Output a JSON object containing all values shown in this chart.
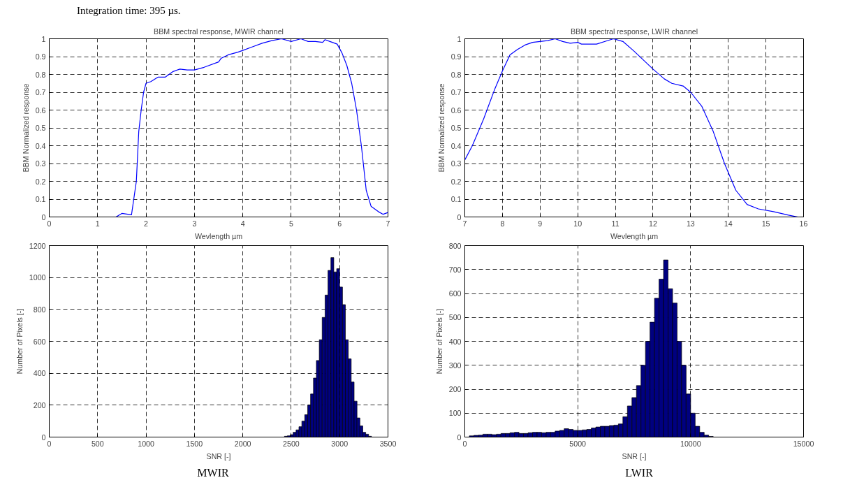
{
  "chart_data": [
    {
      "type": "line",
      "title": "BBM spectral response, MWIR channel",
      "xlabel": "Wevlength µm",
      "ylabel": "BBM Normalized response",
      "annotations": [
        "Integration time: 395 µs."
      ],
      "grid": true,
      "xlim": [
        0,
        7
      ],
      "ylim": [
        0,
        1
      ],
      "xticks": [
        0,
        1,
        2,
        3,
        4,
        5,
        6,
        7
      ],
      "yticks": [
        0,
        0.1,
        0.2,
        0.3,
        0.4,
        0.5,
        0.6,
        0.7,
        0.8,
        0.9,
        1
      ],
      "x": [
        1.0,
        1.38,
        1.5,
        1.7,
        1.8,
        1.85,
        1.9,
        1.95,
        2.0,
        2.1,
        2.25,
        2.4,
        2.55,
        2.7,
        2.85,
        3.0,
        3.2,
        3.5,
        3.55,
        3.7,
        3.9,
        4.0,
        4.2,
        4.4,
        4.6,
        4.8,
        5.0,
        5.2,
        5.35,
        5.5,
        5.65,
        5.7,
        5.8,
        5.95,
        6.05,
        6.15,
        6.25,
        6.35,
        6.45,
        6.55,
        6.65,
        6.8,
        6.9,
        7.0
      ],
      "series": [
        {
          "color": "#0000ff",
          "values": [
            0,
            0,
            0.02,
            0.012,
            0.2,
            0.48,
            0.6,
            0.7,
            0.75,
            0.76,
            0.785,
            0.785,
            0.815,
            0.83,
            0.825,
            0.825,
            0.84,
            0.87,
            0.89,
            0.91,
            0.925,
            0.935,
            0.955,
            0.975,
            0.99,
            1.0,
            0.985,
            1.0,
            0.985,
            0.985,
            0.98,
            0.995,
            0.985,
            0.97,
            0.92,
            0.85,
            0.75,
            0.6,
            0.4,
            0.15,
            0.06,
            0.03,
            0.015,
            0.025
          ]
        }
      ]
    },
    {
      "type": "line",
      "title": "BBM spectral response, LWIR channel",
      "xlabel": "Wevlength µm",
      "ylabel": "BBM Normalized response",
      "grid": true,
      "xlim": [
        7,
        16
      ],
      "ylim": [
        0,
        1
      ],
      "xticks": [
        7,
        8,
        9,
        10,
        11,
        12,
        13,
        14,
        15,
        16
      ],
      "yticks": [
        0,
        0.1,
        0.2,
        0.3,
        0.4,
        0.5,
        0.6,
        0.7,
        0.8,
        0.9,
        1
      ],
      "x": [
        7,
        7.2,
        7.5,
        7.8,
        8.0,
        8.2,
        8.4,
        8.6,
        8.8,
        9.0,
        9.2,
        9.4,
        9.6,
        9.8,
        10.0,
        10.1,
        10.5,
        10.8,
        10.95,
        11.2,
        11.5,
        12.0,
        12.3,
        12.5,
        12.8,
        13.0,
        13.3,
        13.6,
        13.9,
        14.2,
        14.5,
        14.8,
        15.2,
        15.6,
        15.85,
        16
      ],
      "series": [
        {
          "color": "#0000ff",
          "values": [
            0.32,
            0.4,
            0.55,
            0.72,
            0.82,
            0.91,
            0.94,
            0.965,
            0.98,
            0.985,
            0.99,
            1.0,
            0.985,
            0.975,
            0.98,
            0.97,
            0.97,
            0.99,
            1.0,
            0.985,
            0.93,
            0.83,
            0.775,
            0.75,
            0.735,
            0.7,
            0.62,
            0.48,
            0.3,
            0.15,
            0.07,
            0.045,
            0.03,
            0.01,
            0,
            0
          ]
        }
      ]
    },
    {
      "type": "histogram",
      "xlabel": "SNR [-]",
      "ylabel": "Number of Pixels [-]",
      "annotations": [
        "MWIR"
      ],
      "grid": true,
      "color": "#000080",
      "xlim": [
        0,
        3500
      ],
      "ylim": [
        0,
        1200
      ],
      "xticks": [
        0,
        500,
        1000,
        1500,
        2000,
        2500,
        3000,
        3500
      ],
      "yticks": [
        0,
        200,
        400,
        600,
        800,
        1000,
        1200
      ],
      "bins": [
        2400,
        2430,
        2460,
        2490,
        2520,
        2550,
        2580,
        2610,
        2640,
        2670,
        2700,
        2730,
        2760,
        2790,
        2820,
        2850,
        2880,
        2910,
        2940,
        2970,
        3000,
        3030,
        3060,
        3090,
        3120,
        3150,
        3180,
        3210,
        3240,
        3270,
        3300,
        3330
      ],
      "values": [
        null,
        5,
        8,
        15,
        30,
        45,
        65,
        100,
        140,
        200,
        270,
        370,
        480,
        610,
        750,
        890,
        1045,
        1125,
        1035,
        1055,
        940,
        830,
        610,
        490,
        345,
        225,
        120,
        70,
        30,
        18,
        5
      ]
    },
    {
      "type": "histogram",
      "xlabel": "SNR [-]",
      "ylabel": "Number of Pixels [-]",
      "annotations": [
        "LWIR"
      ],
      "grid": true,
      "color": "#000080",
      "xlim": [
        0,
        15000
      ],
      "ylim": [
        0,
        800
      ],
      "xticks": [
        0,
        5000,
        10000,
        15000
      ],
      "yticks": [
        0,
        100,
        200,
        300,
        400,
        500,
        600,
        700,
        800
      ],
      "bins": [
        200,
        400,
        600,
        800,
        1000,
        1200,
        1400,
        1600,
        1800,
        2000,
        2200,
        2400,
        2600,
        2800,
        3000,
        3200,
        3400,
        3600,
        3800,
        4000,
        4200,
        4400,
        4600,
        4800,
        5000,
        5200,
        5400,
        5600,
        5800,
        6000,
        6200,
        6400,
        6600,
        6800,
        7000,
        7200,
        7400,
        7600,
        7800,
        8000,
        8200,
        8400,
        8600,
        8800,
        9000,
        9200,
        9400,
        9600,
        9800,
        10000,
        10200,
        10400,
        10600,
        10800,
        11000
      ],
      "values": [
        5,
        7,
        8,
        12,
        12,
        10,
        12,
        15,
        15,
        18,
        20,
        15,
        15,
        18,
        20,
        20,
        18,
        20,
        20,
        25,
        28,
        35,
        32,
        28,
        28,
        30,
        32,
        38,
        42,
        45,
        45,
        48,
        50,
        55,
        85,
        130,
        165,
        215,
        300,
        400,
        480,
        580,
        660,
        740,
        620,
        560,
        400,
        300,
        180,
        100,
        45,
        20,
        8,
        3
      ]
    }
  ]
}
